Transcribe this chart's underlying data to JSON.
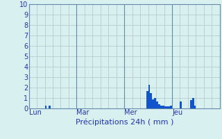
{
  "background_color": "#d8f0f0",
  "plot_bg_color": "#d8f0f0",
  "grid_color": "#b0c4c4",
  "vgrid_color": "#b0c4c4",
  "day_line_color": "#6688aa",
  "bar_color": "#1155cc",
  "bar_edge_color": "#1155cc",
  "tick_label_color": "#2233aa",
  "xlabel_color": "#2233aa",
  "xlabel": "Précipitations 24h ( mm )",
  "xlabel_fontsize": 8,
  "tick_fontsize": 7,
  "ylim": [
    0,
    10
  ],
  "yticks": [
    0,
    1,
    2,
    3,
    4,
    5,
    6,
    7,
    8,
    9,
    10
  ],
  "day_labels": [
    "Lun",
    "Mar",
    "Mer",
    "Jeu"
  ],
  "day_positions": [
    0,
    24,
    48,
    72
  ],
  "n_bars": 96,
  "vgrid_step": 4,
  "bar_values": [
    0,
    0,
    0,
    0,
    0,
    0,
    0,
    0,
    0.3,
    0,
    0.25,
    0,
    0,
    0,
    0,
    0,
    0,
    0,
    0,
    0,
    0,
    0,
    0,
    0,
    0,
    0,
    0,
    0,
    0,
    0,
    0,
    0,
    0,
    0,
    0,
    0,
    0,
    0,
    0,
    0,
    0,
    0,
    0,
    0,
    0,
    0,
    0,
    0,
    0,
    0,
    0,
    0,
    0,
    0,
    0,
    0,
    0,
    0,
    0,
    1.7,
    2.3,
    1.5,
    0.9,
    1.0,
    0.7,
    0.4,
    0.3,
    0.25,
    0.2,
    0.2,
    0.2,
    0.3,
    0,
    0,
    0,
    0,
    0.7,
    0,
    0,
    0,
    0,
    0.8,
    1.0,
    0.3,
    0,
    0,
    0,
    0,
    0,
    0,
    0,
    0,
    0,
    0,
    0,
    0
  ]
}
